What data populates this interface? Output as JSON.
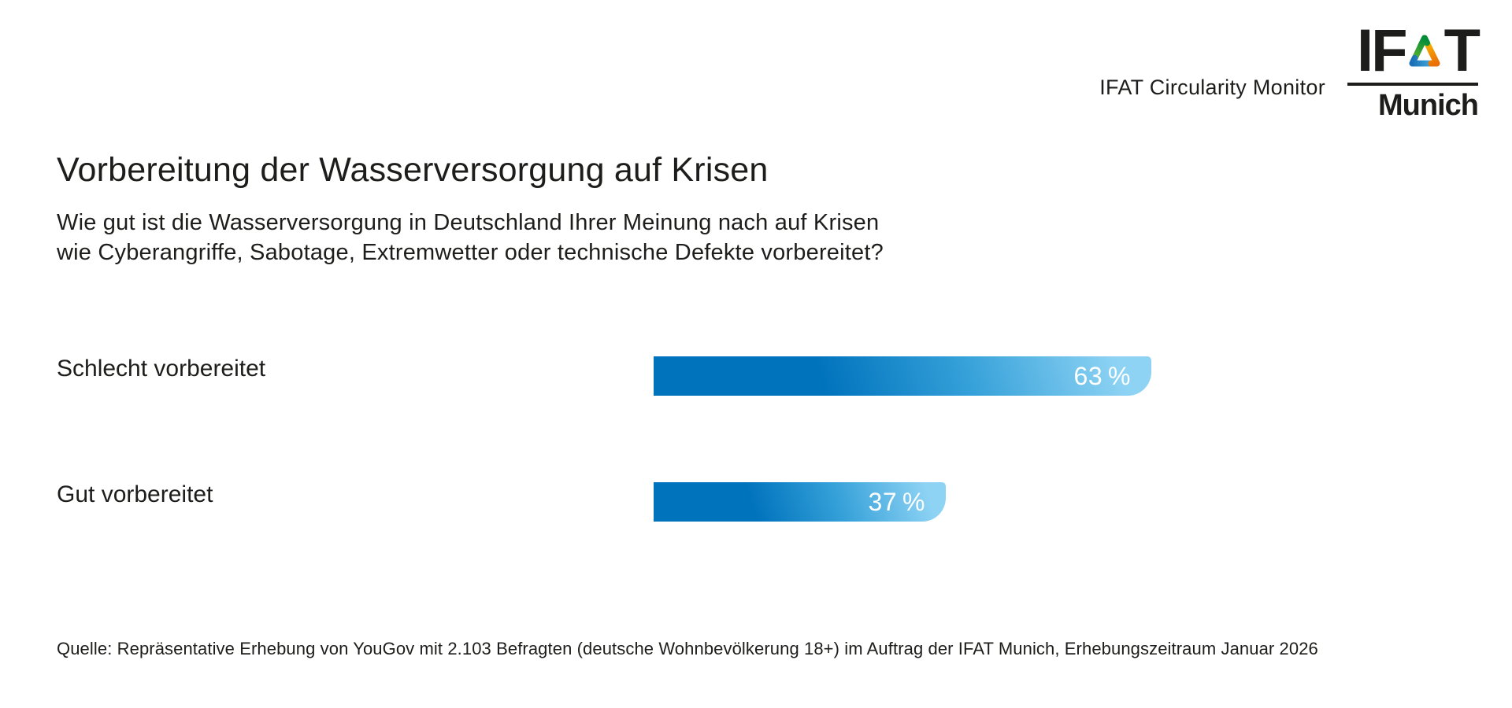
{
  "header": {
    "monitor_label": "IFAT Circularity Monitor",
    "logo": {
      "brand_left": "IF",
      "brand_right": "T",
      "brand_full": "IFAT",
      "city": "Munich",
      "triangle_colors": {
        "green_start": "#68b52d",
        "green_end": "#008c3a",
        "orange_start": "#fcc400",
        "orange_end": "#ea6f05",
        "blue_start": "#49b8e8",
        "blue_end": "#1b6fb5"
      }
    }
  },
  "chart_data": {
    "type": "bar",
    "orientation": "horizontal",
    "title": "Vorbereitung der Wasserversorgung auf Krisen",
    "subtitle": "Wie gut ist die Wasserversorgung in Deutschland Ihrer Meinung nach auf Krisen\nwie Cyberangriffe, Sabotage, Extremwetter oder technische Defekte vorbereitet?",
    "categories": [
      "Schlecht vorbereitet",
      "Gut vorbereitet"
    ],
    "values": [
      63,
      37
    ],
    "unit": "%",
    "xlim": [
      0,
      100
    ],
    "grid": false,
    "legend": false,
    "bar_gradient": [
      "#0073bd",
      "#36a1d9",
      "#8ed3f4"
    ],
    "value_label_color": "#ffffff"
  },
  "source_note": "Quelle: Repräsentative Erhebung von YouGov mit 2.103 Befragten (deutsche Wohnbevölkerung 18+) im Auftrag der IFAT Munich, Erhebungszeitraum Januar 2026"
}
